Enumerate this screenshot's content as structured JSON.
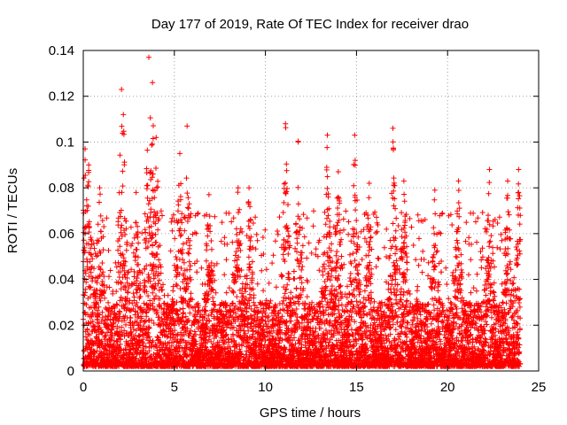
{
  "chart_data": {
    "type": "scatter",
    "title": "Day 177 of 2019, Rate Of TEC Index for receiver drao",
    "xlabel": "GPS time / hours",
    "ylabel": "ROTI / TECUs",
    "xlim": [
      0,
      25
    ],
    "ylim": [
      0,
      0.14
    ],
    "x_ticks": [
      "0",
      "5",
      "10",
      "15",
      "20",
      "25"
    ],
    "y_ticks": [
      "0",
      "0.02",
      "0.04",
      "0.06",
      "0.08",
      "0.1",
      "0.12",
      "0.14"
    ],
    "grid": true,
    "marker": "+",
    "color": "#ff0000",
    "series": [
      {
        "name": "ROTI",
        "x_range": [
          0,
          24
        ],
        "description_of_density": "dense plus-markers, mostly 0.002 to 0.03 TECU with frequent spikes",
        "peaks": [
          {
            "x": 0.1,
            "y": 0.097
          },
          {
            "x": 0.3,
            "y": 0.09
          },
          {
            "x": 0.9,
            "y": 0.08
          },
          {
            "x": 2.1,
            "y": 0.123
          },
          {
            "x": 2.2,
            "y": 0.112
          },
          {
            "x": 2.9,
            "y": 0.078
          },
          {
            "x": 3.6,
            "y": 0.137
          },
          {
            "x": 3.8,
            "y": 0.126
          },
          {
            "x": 4.0,
            "y": 0.102
          },
          {
            "x": 5.3,
            "y": 0.095
          },
          {
            "x": 5.7,
            "y": 0.107
          },
          {
            "x": 6.9,
            "y": 0.077
          },
          {
            "x": 8.5,
            "y": 0.08
          },
          {
            "x": 9.1,
            "y": 0.08
          },
          {
            "x": 11.1,
            "y": 0.108
          },
          {
            "x": 11.8,
            "y": 0.1
          },
          {
            "x": 13.4,
            "y": 0.103
          },
          {
            "x": 14.0,
            "y": 0.087
          },
          {
            "x": 14.9,
            "y": 0.103
          },
          {
            "x": 15.7,
            "y": 0.082
          },
          {
            "x": 17.0,
            "y": 0.106
          },
          {
            "x": 17.6,
            "y": 0.083
          },
          {
            "x": 19.3,
            "y": 0.079
          },
          {
            "x": 20.6,
            "y": 0.083
          },
          {
            "x": 22.3,
            "y": 0.088
          },
          {
            "x": 23.3,
            "y": 0.083
          },
          {
            "x": 23.9,
            "y": 0.088
          }
        ]
      }
    ]
  }
}
